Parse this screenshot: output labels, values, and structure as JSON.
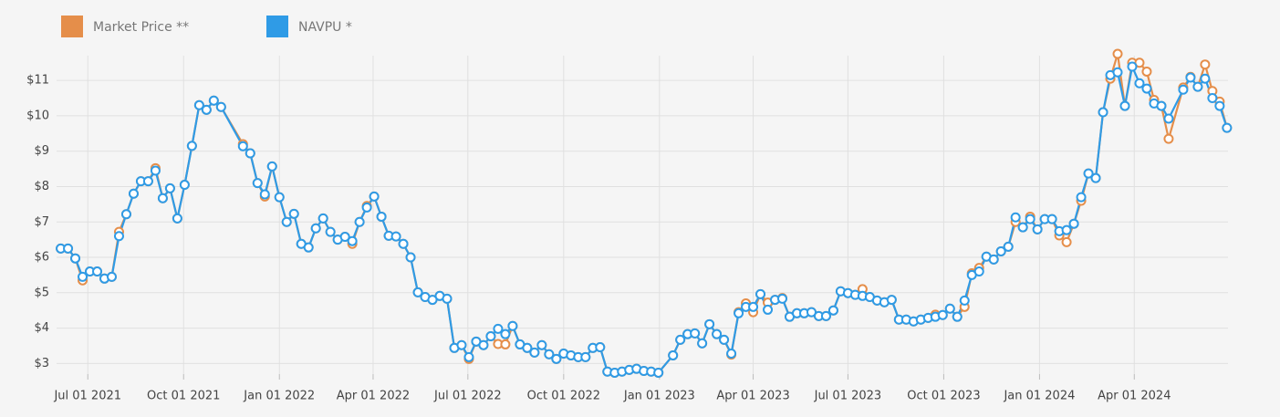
{
  "chart_data": {
    "type": "line",
    "x": [
      "2021-06-05",
      "2021-06-12",
      "2021-06-19",
      "2021-06-26",
      "2021-07-03",
      "2021-07-10",
      "2021-07-17",
      "2021-07-24",
      "2021-07-31",
      "2021-08-07",
      "2021-08-14",
      "2021-08-21",
      "2021-08-28",
      "2021-09-04",
      "2021-09-11",
      "2021-09-18",
      "2021-09-25",
      "2021-10-02",
      "2021-10-09",
      "2021-10-16",
      "2021-10-23",
      "2021-10-30",
      "2021-11-06",
      "2021-11-27",
      "2021-12-04",
      "2021-12-11",
      "2021-12-18",
      "2021-12-25",
      "2022-01-01",
      "2022-01-08",
      "2022-01-15",
      "2022-01-22",
      "2022-01-29",
      "2022-02-05",
      "2022-02-12",
      "2022-02-19",
      "2022-02-26",
      "2022-03-05",
      "2022-03-12",
      "2022-03-19",
      "2022-03-26",
      "2022-04-02",
      "2022-04-09",
      "2022-04-16",
      "2022-04-23",
      "2022-04-30",
      "2022-05-07",
      "2022-05-14",
      "2022-05-21",
      "2022-05-28",
      "2022-06-04",
      "2022-06-11",
      "2022-06-18",
      "2022-06-25",
      "2022-07-02",
      "2022-07-09",
      "2022-07-16",
      "2022-07-23",
      "2022-07-30",
      "2022-08-06",
      "2022-08-13",
      "2022-08-20",
      "2022-08-27",
      "2022-09-03",
      "2022-09-10",
      "2022-09-17",
      "2022-09-24",
      "2022-10-01",
      "2022-10-08",
      "2022-10-15",
      "2022-10-22",
      "2022-10-29",
      "2022-11-05",
      "2022-11-12",
      "2022-11-19",
      "2022-11-26",
      "2022-12-03",
      "2022-12-10",
      "2022-12-17",
      "2022-12-24",
      "2022-12-31",
      "2023-01-14",
      "2023-01-21",
      "2023-01-28",
      "2023-02-04",
      "2023-02-11",
      "2023-02-18",
      "2023-02-25",
      "2023-03-04",
      "2023-03-11",
      "2023-03-18",
      "2023-03-25",
      "2023-04-01",
      "2023-04-08",
      "2023-04-15",
      "2023-04-22",
      "2023-04-29",
      "2023-05-06",
      "2023-05-13",
      "2023-05-20",
      "2023-05-27",
      "2023-06-03",
      "2023-06-10",
      "2023-06-17",
      "2023-06-24",
      "2023-07-01",
      "2023-07-08",
      "2023-07-15",
      "2023-07-22",
      "2023-07-29",
      "2023-08-05",
      "2023-08-12",
      "2023-08-19",
      "2023-08-26",
      "2023-09-02",
      "2023-09-09",
      "2023-09-16",
      "2023-09-23",
      "2023-09-30",
      "2023-10-07",
      "2023-10-14",
      "2023-10-21",
      "2023-10-28",
      "2023-11-04",
      "2023-11-11",
      "2023-11-18",
      "2023-11-25",
      "2023-12-02",
      "2023-12-09",
      "2023-12-16",
      "2023-12-23",
      "2023-12-30",
      "2024-01-06",
      "2024-01-13",
      "2024-01-20",
      "2024-01-27",
      "2024-02-03",
      "2024-02-10",
      "2024-02-17",
      "2024-02-24",
      "2024-03-02",
      "2024-03-09",
      "2024-03-16",
      "2024-03-23",
      "2024-03-30",
      "2024-04-06",
      "2024-04-13",
      "2024-04-20",
      "2024-04-27",
      "2024-05-04",
      "2024-05-18",
      "2024-05-25",
      "2024-06-01",
      "2024-06-08",
      "2024-06-15",
      "2024-06-22",
      "2024-06-29"
    ],
    "series": [
      {
        "name": "Market Price **",
        "color": "#e58e4a",
        "values": [
          6.25,
          6.25,
          5.97,
          5.35,
          5.6,
          5.6,
          5.4,
          5.45,
          6.72,
          7.22,
          7.8,
          8.15,
          8.15,
          8.52,
          7.67,
          7.95,
          7.1,
          8.05,
          9.15,
          10.3,
          10.17,
          10.43,
          10.25,
          9.2,
          8.94,
          8.1,
          7.72,
          8.57,
          7.7,
          7.0,
          7.23,
          6.38,
          6.28,
          6.82,
          7.1,
          6.72,
          6.5,
          6.58,
          6.38,
          7.0,
          7.45,
          7.72,
          7.15,
          6.61,
          6.59,
          6.38,
          6.0,
          5.01,
          4.88,
          4.8,
          4.91,
          4.83,
          3.44,
          3.52,
          3.13,
          3.62,
          3.52,
          3.77,
          3.55,
          3.54,
          4.06,
          3.54,
          3.44,
          3.31,
          3.52,
          3.26,
          3.13,
          3.28,
          3.23,
          3.18,
          3.18,
          3.44,
          3.46,
          2.77,
          2.74,
          2.77,
          2.82,
          2.85,
          2.79,
          2.77,
          2.74,
          3.23,
          3.67,
          3.83,
          3.85,
          3.57,
          4.11,
          3.83,
          3.67,
          3.25,
          4.45,
          4.7,
          4.45,
          4.96,
          4.72,
          4.8,
          4.85,
          4.32,
          4.42,
          4.42,
          4.45,
          4.34,
          4.34,
          4.5,
          5.04,
          4.99,
          4.94,
          5.1,
          4.88,
          4.78,
          4.73,
          4.8,
          4.24,
          4.24,
          4.19,
          4.24,
          4.29,
          4.38,
          4.37,
          4.55,
          4.32,
          4.6,
          5.55,
          5.7,
          6.02,
          5.94,
          6.17,
          6.3,
          7.0,
          6.85,
          7.15,
          6.79,
          7.08,
          7.08,
          6.62,
          6.43,
          6.95,
          7.6,
          8.37,
          8.24,
          10.1,
          11.05,
          11.75,
          10.28,
          11.5,
          11.5,
          11.25,
          10.45,
          10.28,
          9.35,
          10.8,
          11.1,
          10.82,
          11.45,
          10.7,
          10.4,
          9.66
        ]
      },
      {
        "name": "NAVPU *",
        "color": "#2f9be6",
        "values": [
          6.25,
          6.25,
          5.97,
          5.45,
          5.6,
          5.6,
          5.4,
          5.45,
          6.6,
          7.22,
          7.8,
          8.15,
          8.15,
          8.45,
          7.67,
          7.95,
          7.1,
          8.05,
          9.15,
          10.3,
          10.17,
          10.43,
          10.25,
          9.14,
          8.94,
          8.1,
          7.78,
          8.57,
          7.7,
          7.0,
          7.23,
          6.38,
          6.28,
          6.82,
          7.1,
          6.72,
          6.5,
          6.58,
          6.46,
          7.0,
          7.41,
          7.72,
          7.15,
          6.61,
          6.59,
          6.38,
          6.0,
          5.01,
          4.88,
          4.8,
          4.91,
          4.83,
          3.44,
          3.52,
          3.18,
          3.62,
          3.52,
          3.77,
          3.98,
          3.83,
          4.06,
          3.54,
          3.44,
          3.31,
          3.52,
          3.26,
          3.13,
          3.28,
          3.23,
          3.18,
          3.18,
          3.44,
          3.46,
          2.77,
          2.74,
          2.77,
          2.82,
          2.85,
          2.79,
          2.77,
          2.74,
          3.23,
          3.67,
          3.83,
          3.85,
          3.57,
          4.11,
          3.83,
          3.67,
          3.28,
          4.42,
          4.6,
          4.6,
          4.96,
          4.52,
          4.8,
          4.83,
          4.32,
          4.42,
          4.42,
          4.45,
          4.34,
          4.34,
          4.5,
          5.04,
          4.99,
          4.94,
          4.91,
          4.88,
          4.78,
          4.73,
          4.8,
          4.24,
          4.24,
          4.19,
          4.24,
          4.29,
          4.32,
          4.37,
          4.55,
          4.32,
          4.78,
          5.5,
          5.6,
          6.02,
          5.94,
          6.17,
          6.3,
          7.13,
          6.85,
          7.08,
          6.79,
          7.08,
          7.08,
          6.74,
          6.77,
          6.95,
          7.7,
          8.37,
          8.24,
          10.1,
          11.15,
          11.23,
          10.28,
          11.39,
          10.92,
          10.77,
          10.35,
          10.28,
          9.92,
          10.74,
          11.08,
          10.82,
          11.05,
          10.5,
          10.28,
          9.66
        ]
      }
    ],
    "xlim": [
      "2021-06-01",
      "2024-06-30"
    ],
    "xticks": [
      {
        "value": "2021-07-01",
        "label": "Jul 01 2021"
      },
      {
        "value": "2021-10-01",
        "label": "Oct 01 2021"
      },
      {
        "value": "2022-01-01",
        "label": "Jan 01 2022"
      },
      {
        "value": "2022-04-01",
        "label": "Apr 01 2022"
      },
      {
        "value": "2022-07-01",
        "label": "Jul 01 2022"
      },
      {
        "value": "2022-10-01",
        "label": "Oct 01 2022"
      },
      {
        "value": "2023-01-01",
        "label": "Jan 01 2023"
      },
      {
        "value": "2023-04-01",
        "label": "Apr 01 2023"
      },
      {
        "value": "2023-07-01",
        "label": "Jul 01 2023"
      },
      {
        "value": "2023-10-01",
        "label": "Oct 01 2023"
      },
      {
        "value": "2024-01-01",
        "label": "Jan 01 2024"
      },
      {
        "value": "2024-04-01",
        "label": "Apr 01 2024"
      }
    ],
    "ylim": [
      2.7,
      11.7
    ],
    "yticks": [
      {
        "value": 3,
        "label": "$3"
      },
      {
        "value": 4,
        "label": "$4"
      },
      {
        "value": 5,
        "label": "$5"
      },
      {
        "value": 6,
        "label": "$6"
      },
      {
        "value": 7,
        "label": "$7"
      },
      {
        "value": 8,
        "label": "$8"
      },
      {
        "value": 9,
        "label": "$9"
      },
      {
        "value": 10,
        "label": "$10"
      },
      {
        "value": 11,
        "label": "$11"
      }
    ],
    "grid": true,
    "legend": "top-left"
  }
}
